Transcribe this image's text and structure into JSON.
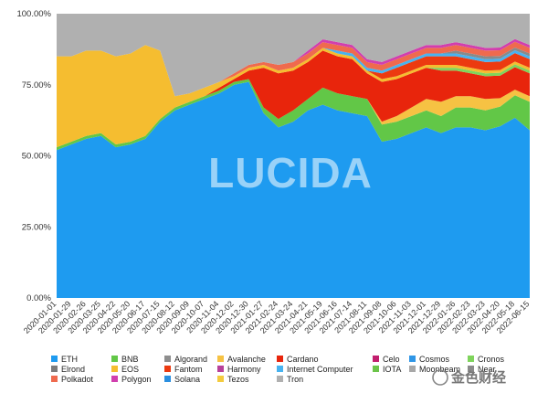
{
  "chart_data": {
    "type": "area",
    "stacked": true,
    "normalized": true,
    "ylim": [
      0,
      100
    ],
    "yticks": [
      "0.00%",
      "25.00%",
      "50.00%",
      "75.00%",
      "100.00%"
    ],
    "xticks": [
      "2020-01-01",
      "2020-01-29",
      "2020-02-26",
      "2020-03-25",
      "2020-04-22",
      "2020-05-20",
      "2020-06-17",
      "2020-07-15",
      "2020-08-12",
      "2020-09-09",
      "2020-10-07",
      "2020-11-04",
      "2020-12-02",
      "2020-12-30",
      "2021-01-27",
      "2021-02-24",
      "2021-03-24",
      "2021-04-21",
      "2021-05-19",
      "2021-06-16",
      "2021-07-14",
      "2021-08-11",
      "2021-09-08",
      "2021-10-06",
      "2021-11-03",
      "2021-12-01",
      "2021-12-29",
      "2022-01-26",
      "2022-02-23",
      "2022-03-23",
      "2022-04-20",
      "2022-05-18",
      "2022-06-15"
    ],
    "series": [
      {
        "name": "ETH",
        "color": "#1e9bf0",
        "values": [
          52,
          54,
          56,
          57,
          53,
          54,
          56,
          62,
          66,
          68,
          70,
          72,
          75,
          76,
          65,
          60,
          62,
          66,
          68,
          66,
          65,
          64,
          55,
          56,
          58,
          60,
          58,
          60,
          60,
          59,
          61,
          64,
          59
        ]
      },
      {
        "name": "BNB",
        "color": "#62c747",
        "values": [
          1,
          1,
          1,
          1,
          1,
          1,
          1,
          1,
          1,
          1,
          1,
          1,
          1,
          1,
          2,
          3,
          4,
          4,
          6,
          6,
          6,
          6,
          6,
          6,
          6,
          6,
          6,
          7,
          7,
          7,
          7,
          8,
          10
        ]
      },
      {
        "name": "Algorand",
        "color": "#8e8e8e",
        "values": [
          0,
          0,
          0,
          0,
          0,
          0,
          0,
          0,
          0,
          0,
          0,
          0,
          0,
          0,
          0,
          0,
          0,
          0,
          0,
          0,
          0,
          0,
          0,
          0,
          0,
          0,
          0,
          0,
          0,
          0,
          0,
          0,
          0
        ]
      },
      {
        "name": "Avalanche",
        "color": "#f6c243",
        "values": [
          0,
          0,
          0,
          0,
          0,
          0,
          0,
          0,
          0,
          0,
          0,
          0,
          0,
          0,
          0,
          0,
          0,
          0,
          0,
          0,
          0,
          0,
          1,
          2,
          3,
          4,
          5,
          4,
          4,
          4,
          3,
          2,
          2
        ]
      },
      {
        "name": "Cardano",
        "color": "#e8250c",
        "values": [
          0,
          0,
          0,
          0,
          0,
          0,
          0,
          0,
          0,
          0,
          0,
          1,
          1,
          3,
          14,
          16,
          14,
          13,
          13,
          13,
          13,
          9,
          14,
          13,
          12,
          11,
          11,
          9,
          8,
          8,
          8,
          8,
          8
        ]
      },
      {
        "name": "Celo",
        "color": "#c21e6e",
        "values": [
          0,
          0,
          0,
          0,
          0,
          0,
          0,
          0,
          0,
          0,
          0,
          0,
          0,
          0,
          0,
          0,
          0,
          0,
          0,
          0,
          0,
          0,
          0,
          0,
          0,
          0,
          0,
          0,
          0,
          0,
          0,
          0,
          0
        ]
      },
      {
        "name": "Cosmos",
        "color": "#2f96e6",
        "values": [
          0,
          0,
          0,
          0,
          0,
          0,
          0,
          0,
          0,
          0,
          0,
          0,
          0,
          0,
          0,
          0,
          0,
          0,
          0,
          0,
          0,
          0,
          0,
          0,
          0,
          0,
          0,
          0,
          0,
          0,
          0,
          0,
          0
        ]
      },
      {
        "name": "Cronos",
        "color": "#7fd45c",
        "values": [
          0,
          0,
          0,
          0,
          0,
          0,
          0,
          0,
          0,
          0,
          0,
          0,
          0,
          0,
          0,
          0,
          0,
          0,
          0,
          0,
          0,
          0,
          0,
          0,
          0,
          0,
          1,
          1,
          1,
          1,
          1,
          1,
          1
        ]
      },
      {
        "name": "Elrond",
        "color": "#7c7c7c",
        "values": [
          0,
          0,
          0,
          0,
          0,
          0,
          0,
          0,
          0,
          0,
          0,
          0,
          0,
          0,
          0,
          0,
          0,
          0,
          0,
          0,
          0,
          0,
          0,
          0,
          0,
          0,
          0,
          0,
          0,
          0,
          0,
          0,
          0
        ]
      },
      {
        "name": "EOS",
        "color": "#f5bd30",
        "values": [
          32,
          30,
          30,
          29,
          31,
          31,
          32,
          24,
          4,
          3,
          3,
          2,
          1,
          1,
          1,
          1,
          1,
          1,
          1,
          1,
          1,
          1,
          1,
          1,
          1,
          1,
          1,
          1,
          1,
          1,
          1,
          1,
          1
        ]
      },
      {
        "name": "Fantom",
        "color": "#ec3a10",
        "values": [
          0,
          0,
          0,
          0,
          0,
          0,
          0,
          0,
          0,
          0,
          0,
          0,
          0,
          0,
          0,
          0,
          0,
          0,
          0,
          0,
          0,
          0,
          2,
          3,
          3,
          3,
          3,
          3,
          3,
          3,
          3,
          3,
          3
        ]
      },
      {
        "name": "Harmony",
        "color": "#b8419a",
        "values": [
          0,
          0,
          0,
          0,
          0,
          0,
          0,
          0,
          0,
          0,
          0,
          0,
          0,
          0,
          0,
          0,
          0,
          0,
          0,
          0,
          0,
          0,
          0,
          0,
          0,
          0,
          0,
          0,
          0,
          0,
          0,
          0,
          0
        ]
      },
      {
        "name": "Internet Computer",
        "color": "#48b3f0",
        "values": [
          0,
          0,
          0,
          0,
          0,
          0,
          0,
          0,
          0,
          0,
          0,
          0,
          0,
          0,
          0,
          0,
          0,
          0,
          0,
          1,
          1,
          1,
          1,
          1,
          1,
          1,
          1,
          1,
          1,
          1,
          1,
          1,
          1
        ]
      },
      {
        "name": "IOTA",
        "color": "#6cc44a",
        "values": [
          0,
          0,
          0,
          0,
          0,
          0,
          0,
          0,
          0,
          0,
          0,
          0,
          0,
          0,
          0,
          0,
          0,
          0,
          0,
          0,
          0,
          0,
          0,
          0,
          0,
          0,
          0,
          0,
          0,
          0,
          0,
          0,
          0
        ]
      },
      {
        "name": "Moonbeam",
        "color": "#a8a8a8",
        "values": [
          0,
          0,
          0,
          0,
          0,
          0,
          0,
          0,
          0,
          0,
          0,
          0,
          0,
          0,
          0,
          0,
          0,
          0,
          0,
          0,
          0,
          0,
          0,
          0,
          0,
          0,
          0,
          0,
          0,
          0,
          0,
          0,
          0
        ]
      },
      {
        "name": "Near",
        "color": "#8a8a8a",
        "values": [
          0,
          0,
          0,
          0,
          0,
          0,
          0,
          0,
          0,
          0,
          0,
          0,
          0,
          0,
          0,
          0,
          0,
          0,
          0,
          0,
          0,
          0,
          0,
          0,
          0,
          0,
          0,
          1,
          1,
          1,
          1,
          1,
          1
        ]
      },
      {
        "name": "Polkadot",
        "color": "#ef6a4e",
        "values": [
          0,
          0,
          0,
          0,
          0,
          0,
          0,
          0,
          0,
          0,
          0,
          0,
          1,
          1,
          1,
          2,
          2,
          2,
          2,
          2,
          2,
          2,
          2,
          2,
          2,
          2,
          2,
          2,
          2,
          2,
          2,
          2,
          2
        ]
      },
      {
        "name": "Polygon",
        "color": "#d13fae",
        "values": [
          0,
          0,
          0,
          0,
          0,
          0,
          0,
          0,
          0,
          0,
          0,
          0,
          0,
          0,
          0,
          0,
          0,
          1,
          1,
          1,
          1,
          1,
          1,
          1,
          1,
          1,
          1,
          1,
          1,
          1,
          1,
          1,
          1
        ]
      },
      {
        "name": "Solana",
        "color": "#2a8fe0",
        "values": [
          0,
          0,
          0,
          0,
          0,
          0,
          0,
          0,
          0,
          0,
          0,
          0,
          0,
          0,
          0,
          0,
          0,
          0,
          0,
          0,
          0,
          0,
          0,
          0,
          0,
          0,
          0,
          0,
          0,
          0,
          0,
          0,
          0
        ]
      },
      {
        "name": "Tezos",
        "color": "#f4cb3f",
        "values": [
          0,
          0,
          0,
          0,
          0,
          0,
          0,
          0,
          0,
          0,
          0,
          0,
          0,
          0,
          0,
          0,
          0,
          0,
          0,
          0,
          0,
          0,
          0,
          0,
          0,
          0,
          0,
          0,
          0,
          0,
          0,
          0,
          0
        ]
      },
      {
        "name": "Tron",
        "color": "#b0b0b0",
        "values": [
          15,
          15,
          13,
          13,
          15,
          14,
          11,
          13,
          29,
          28,
          26,
          24,
          21,
          18,
          17,
          18,
          17,
          13,
          9,
          10,
          11,
          16,
          17,
          15,
          13,
          11,
          11,
          10,
          11,
          12,
          12,
          9,
          11
        ]
      }
    ],
    "legend": [
      [
        "ETH",
        "BNB",
        "Algorand",
        "Avalanche",
        "Cardano",
        "Celo",
        "Cosmos",
        "Cronos"
      ],
      [
        "Elrond",
        "EOS",
        "Fantom",
        "Harmony",
        "Internet Computer",
        "IOTA",
        "Moonbeam",
        "Near"
      ],
      [
        "Polkadot",
        "Polygon",
        "Solana",
        "Tezos",
        "Tron"
      ]
    ],
    "legend_position": "bottom",
    "grid": false
  },
  "watermark": "LUCIDA",
  "logo": "金色财经"
}
